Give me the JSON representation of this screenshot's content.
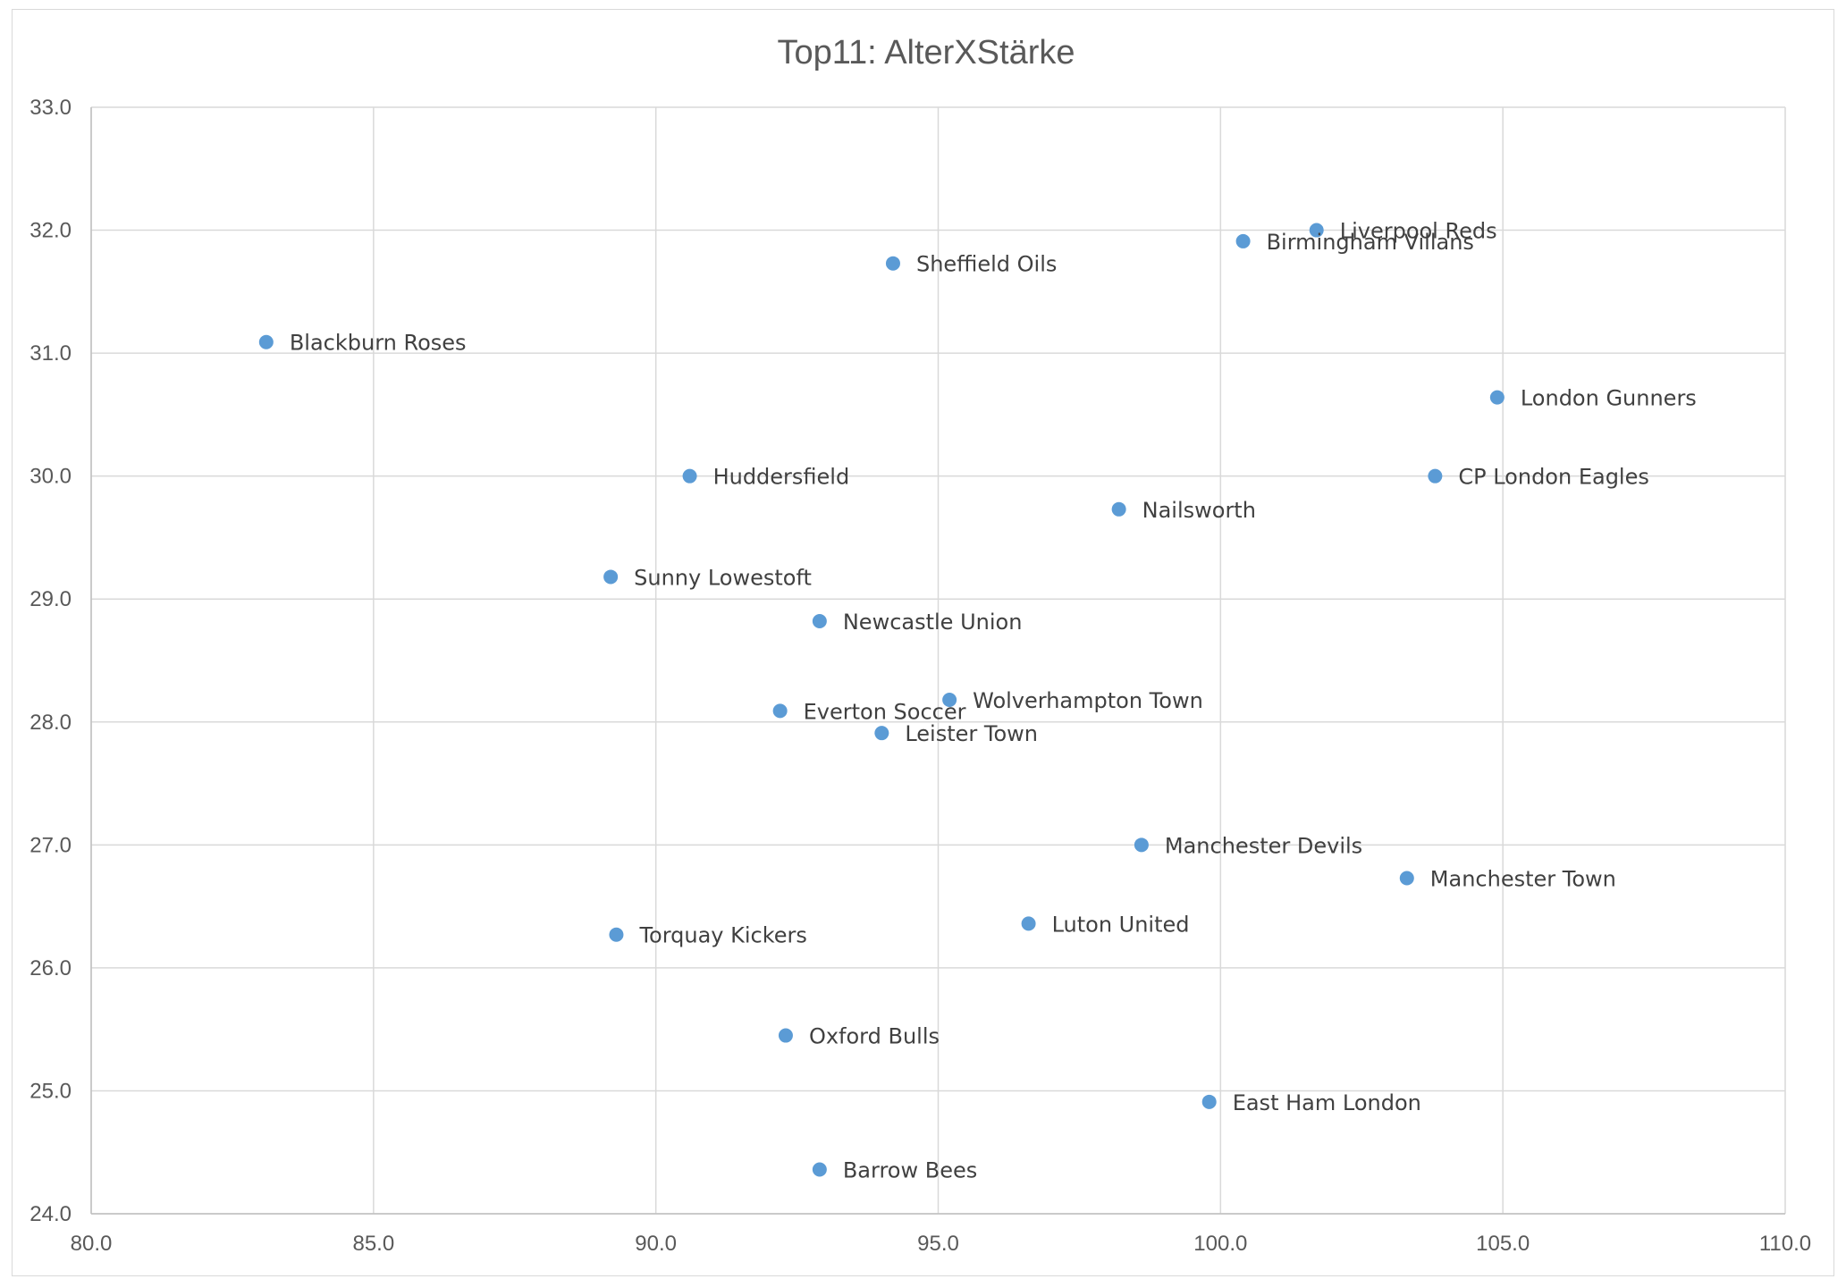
{
  "chart_data": {
    "type": "scatter",
    "title": "Top11: AlterXStärke",
    "xlabel": "",
    "ylabel": "",
    "xlim": [
      80,
      110
    ],
    "ylim": [
      24,
      33
    ],
    "x_ticks": [
      "80.0",
      "85.0",
      "90.0",
      "95.0",
      "100.0",
      "105.0",
      "110.0"
    ],
    "y_ticks": [
      "24.0",
      "25.0",
      "26.0",
      "27.0",
      "28.0",
      "29.0",
      "30.0",
      "31.0",
      "32.0",
      "33.0"
    ],
    "grid": true,
    "legend": "none",
    "marker_color": "#5b9bd5",
    "grid_color": "#d9d9d9",
    "points": [
      {
        "label": "Liverpool Reds",
        "x": 101.7,
        "y": 32.0
      },
      {
        "label": "Birmingham Villans",
        "x": 100.4,
        "y": 31.91
      },
      {
        "label": "Sheffield Oils",
        "x": 94.2,
        "y": 31.73
      },
      {
        "label": "Blackburn Roses",
        "x": 83.1,
        "y": 31.09
      },
      {
        "label": "London Gunners",
        "x": 104.9,
        "y": 30.64
      },
      {
        "label": "Huddersfield",
        "x": 90.6,
        "y": 30.0
      },
      {
        "label": "CP London Eagles",
        "x": 103.8,
        "y": 30.0
      },
      {
        "label": "Nailsworth",
        "x": 98.2,
        "y": 29.73
      },
      {
        "label": "Sunny Lowestoft",
        "x": 89.2,
        "y": 29.18
      },
      {
        "label": "Newcastle Union",
        "x": 92.9,
        "y": 28.82
      },
      {
        "label": "Wolverhampton Town",
        "x": 95.2,
        "y": 28.18
      },
      {
        "label": "Everton Soccer",
        "x": 92.2,
        "y": 28.09
      },
      {
        "label": "Leister Town",
        "x": 94.0,
        "y": 27.91
      },
      {
        "label": "Manchester Devils",
        "x": 98.6,
        "y": 27.0
      },
      {
        "label": "Manchester Town",
        "x": 103.3,
        "y": 26.73
      },
      {
        "label": "Luton United",
        "x": 96.6,
        "y": 26.36
      },
      {
        "label": "Torquay Kickers",
        "x": 89.3,
        "y": 26.27
      },
      {
        "label": "Oxford Bulls",
        "x": 92.3,
        "y": 25.45
      },
      {
        "label": "East Ham London",
        "x": 99.8,
        "y": 24.91
      },
      {
        "label": "Barrow Bees",
        "x": 92.9,
        "y": 24.36
      }
    ]
  }
}
